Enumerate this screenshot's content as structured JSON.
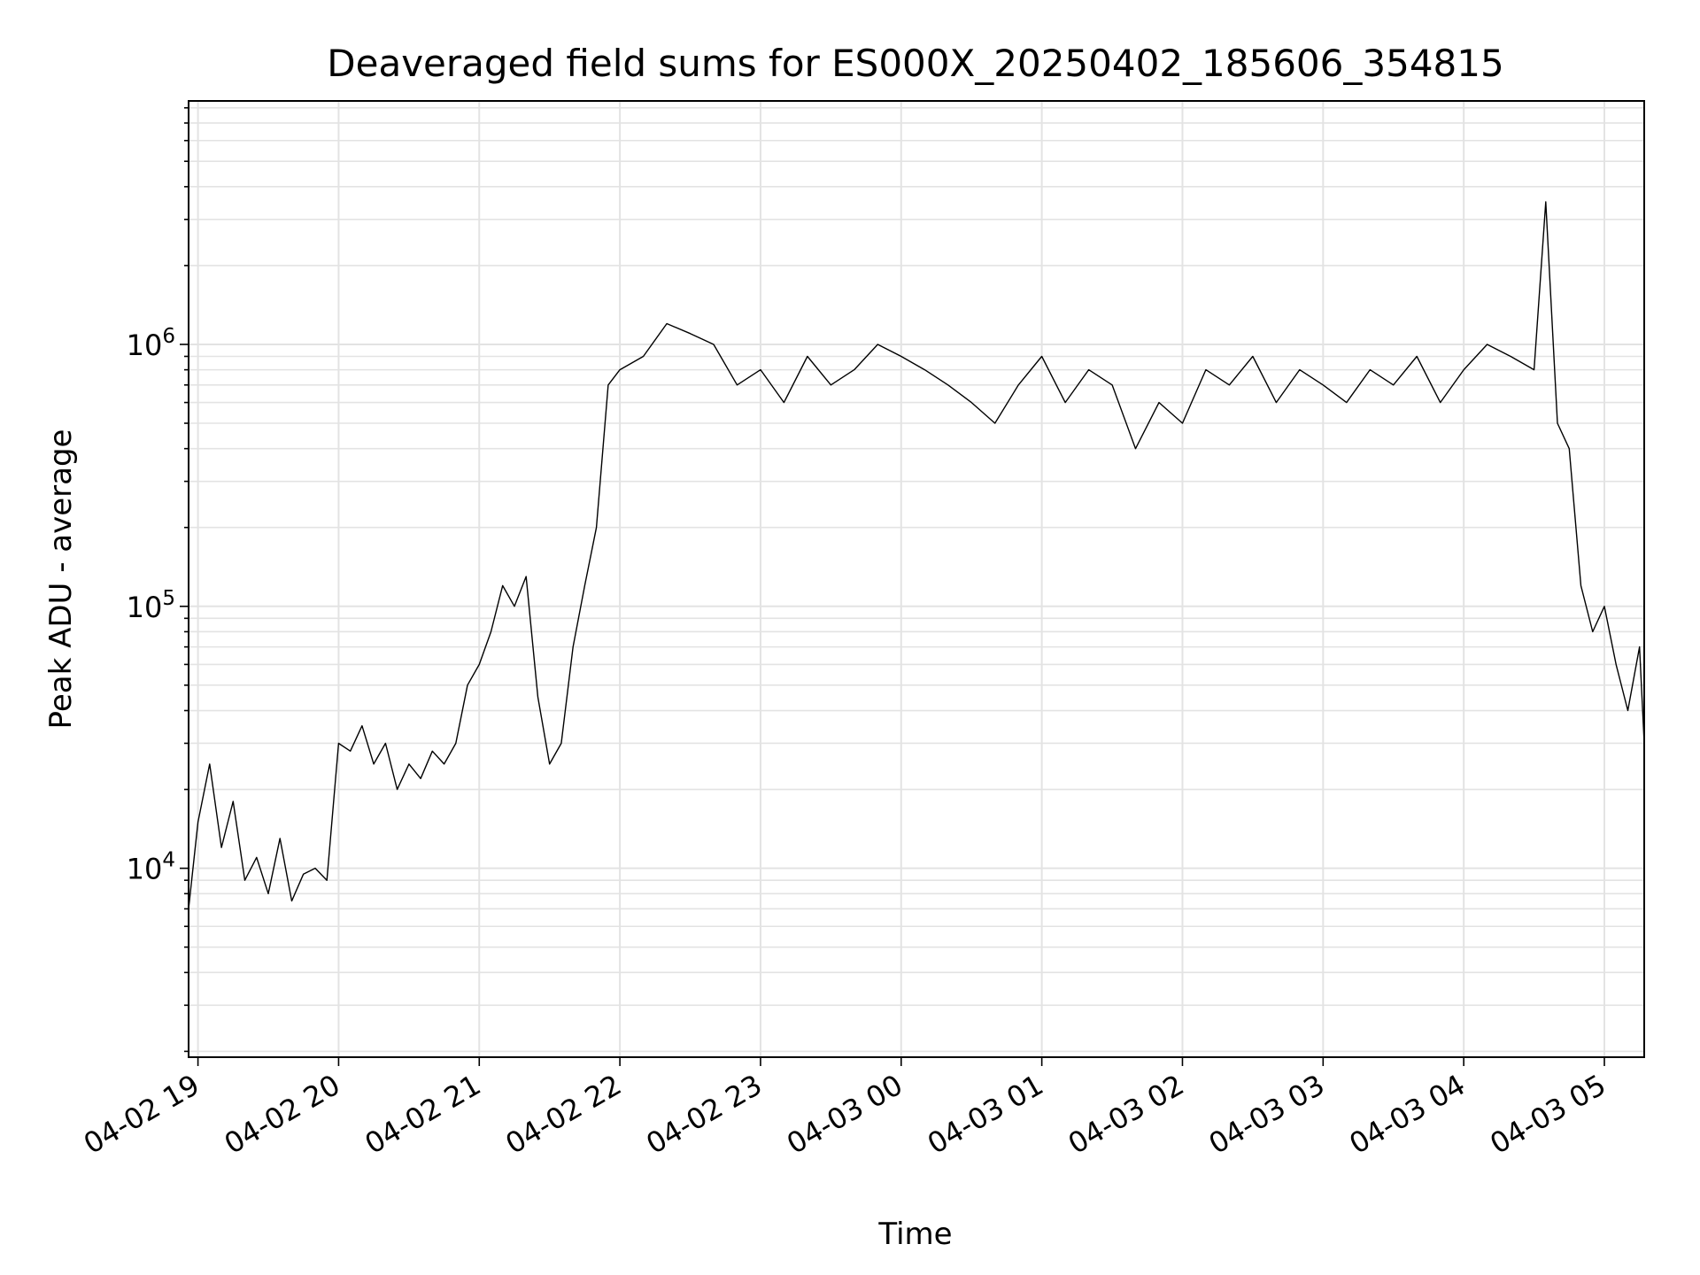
{
  "chart_data": {
    "type": "line",
    "title": "Deaveraged field sums for ES000X_20250402_185606_354815",
    "xlabel": "Time",
    "ylabel": "Peak ADU - average",
    "yscale": "log",
    "ylim": [
      1900,
      8500000
    ],
    "xlim": [
      "2025-04-02 18:56",
      "2025-04-03 05:17"
    ],
    "grid": true,
    "color": "#000000",
    "x_tick_labels": [
      "04-02 19",
      "04-02 20",
      "04-02 21",
      "04-02 22",
      "04-02 23",
      "04-03 00",
      "04-03 01",
      "04-03 02",
      "04-03 03",
      "04-03 04",
      "04-03 05"
    ],
    "y_tick_labels": [
      {
        "value": 10000,
        "base": "10",
        "exp": "4"
      },
      {
        "value": 100000,
        "base": "10",
        "exp": "5"
      },
      {
        "value": 1000000,
        "base": "10",
        "exp": "6"
      }
    ],
    "series": [
      {
        "x": [
          "2025-04-02 18:56",
          "2025-04-02 19:00",
          "2025-04-02 19:05",
          "2025-04-02 19:10",
          "2025-04-02 19:15",
          "2025-04-02 19:20",
          "2025-04-02 19:25",
          "2025-04-02 19:30",
          "2025-04-02 19:35",
          "2025-04-02 19:40",
          "2025-04-02 19:45",
          "2025-04-02 19:50",
          "2025-04-02 19:55",
          "2025-04-02 20:00",
          "2025-04-02 20:05",
          "2025-04-02 20:10",
          "2025-04-02 20:15",
          "2025-04-02 20:20",
          "2025-04-02 20:25",
          "2025-04-02 20:30",
          "2025-04-02 20:35",
          "2025-04-02 20:40",
          "2025-04-02 20:45",
          "2025-04-02 20:50",
          "2025-04-02 20:55",
          "2025-04-02 21:00",
          "2025-04-02 21:05",
          "2025-04-02 21:10",
          "2025-04-02 21:15",
          "2025-04-02 21:20",
          "2025-04-02 21:25",
          "2025-04-02 21:30",
          "2025-04-02 21:35",
          "2025-04-02 21:40",
          "2025-04-02 21:45",
          "2025-04-02 21:50",
          "2025-04-02 21:55",
          "2025-04-02 22:00",
          "2025-04-02 22:10",
          "2025-04-02 22:20",
          "2025-04-02 22:30",
          "2025-04-02 22:40",
          "2025-04-02 22:50",
          "2025-04-02 23:00",
          "2025-04-02 23:10",
          "2025-04-02 23:20",
          "2025-04-02 23:30",
          "2025-04-02 23:40",
          "2025-04-02 23:50",
          "2025-04-03 00:00",
          "2025-04-03 00:10",
          "2025-04-03 00:20",
          "2025-04-03 00:30",
          "2025-04-03 00:40",
          "2025-04-03 00:50",
          "2025-04-03 01:00",
          "2025-04-03 01:10",
          "2025-04-03 01:20",
          "2025-04-03 01:30",
          "2025-04-03 01:40",
          "2025-04-03 01:50",
          "2025-04-03 02:00",
          "2025-04-03 02:10",
          "2025-04-03 02:20",
          "2025-04-03 02:30",
          "2025-04-03 02:40",
          "2025-04-03 02:50",
          "2025-04-03 03:00",
          "2025-04-03 03:10",
          "2025-04-03 03:20",
          "2025-04-03 03:30",
          "2025-04-03 03:40",
          "2025-04-03 03:50",
          "2025-04-03 04:00",
          "2025-04-03 04:10",
          "2025-04-03 04:20",
          "2025-04-03 04:30",
          "2025-04-03 04:35",
          "2025-04-03 04:40",
          "2025-04-03 04:45",
          "2025-04-03 04:50",
          "2025-04-03 04:55",
          "2025-04-03 05:00",
          "2025-04-03 05:05",
          "2025-04-03 05:10",
          "2025-04-03 05:15",
          "2025-04-03 05:17"
        ],
        "y": [
          7000,
          15000,
          25000,
          12000,
          18000,
          9000,
          11000,
          8000,
          13000,
          7500,
          9500,
          10000,
          9000,
          30000,
          28000,
          35000,
          25000,
          30000,
          20000,
          25000,
          22000,
          28000,
          25000,
          30000,
          50000,
          60000,
          80000,
          120000,
          100000,
          130000,
          45000,
          25000,
          30000,
          70000,
          120000,
          200000,
          700000,
          800000,
          900000,
          1200000,
          1100000,
          1000000,
          700000,
          800000,
          600000,
          900000,
          700000,
          800000,
          1000000,
          900000,
          800000,
          700000,
          600000,
          500000,
          700000,
          900000,
          600000,
          800000,
          700000,
          400000,
          600000,
          500000,
          800000,
          700000,
          900000,
          600000,
          800000,
          700000,
          600000,
          800000,
          700000,
          900000,
          600000,
          800000,
          1000000,
          900000,
          800000,
          3500000,
          500000,
          400000,
          120000,
          80000,
          100000,
          60000,
          40000,
          70000,
          30000
        ]
      }
    ]
  }
}
